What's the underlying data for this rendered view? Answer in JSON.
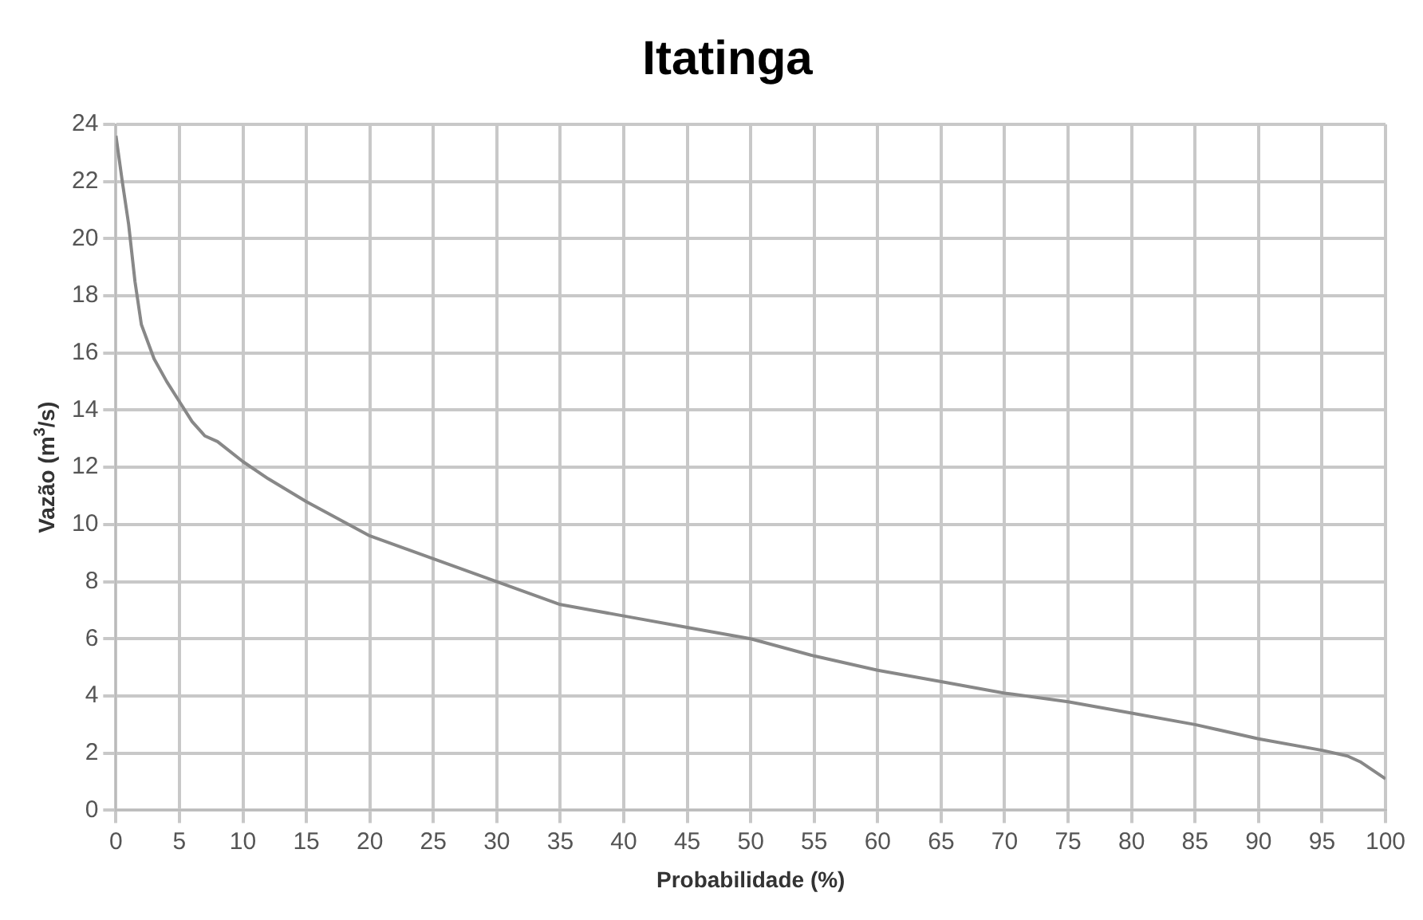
{
  "chart_data": {
    "type": "line",
    "title": "Itatinga",
    "xlabel": "Probabilidade (%)",
    "ylabel": "Vazão (m$^{3}$/s)",
    "x": [
      0,
      0.5,
      1,
      1.5,
      2,
      3,
      4,
      5,
      6,
      7,
      8,
      10,
      12,
      15,
      20,
      25,
      30,
      35,
      40,
      45,
      50,
      55,
      60,
      65,
      70,
      75,
      80,
      85,
      90,
      95,
      97,
      98,
      99,
      100
    ],
    "series": [
      {
        "color": "#888888",
        "values": [
          23.6,
          22,
          20.5,
          18.5,
          17,
          15.8,
          15,
          14.3,
          13.6,
          13.1,
          12.9,
          12.2,
          11.6,
          10.8,
          9.6,
          8.8,
          8.0,
          7.2,
          6.8,
          6.4,
          6.0,
          5.4,
          4.9,
          4.5,
          4.1,
          3.8,
          3.4,
          3.0,
          2.5,
          2.1,
          1.9,
          1.7,
          1.4,
          1.1
        ]
      }
    ],
    "xlim": [
      0,
      100
    ],
    "xticks": [
      0,
      5,
      10,
      15,
      20,
      25,
      30,
      35,
      40,
      45,
      50,
      55,
      60,
      65,
      70,
      75,
      80,
      85,
      90,
      95,
      100
    ],
    "ylim": [
      0,
      24
    ],
    "yticks": [
      0,
      2,
      4,
      6,
      8,
      10,
      12,
      14,
      16,
      18,
      20,
      22,
      24
    ],
    "grid": true,
    "legend": false,
    "marker": "none",
    "line_style": "solid"
  }
}
